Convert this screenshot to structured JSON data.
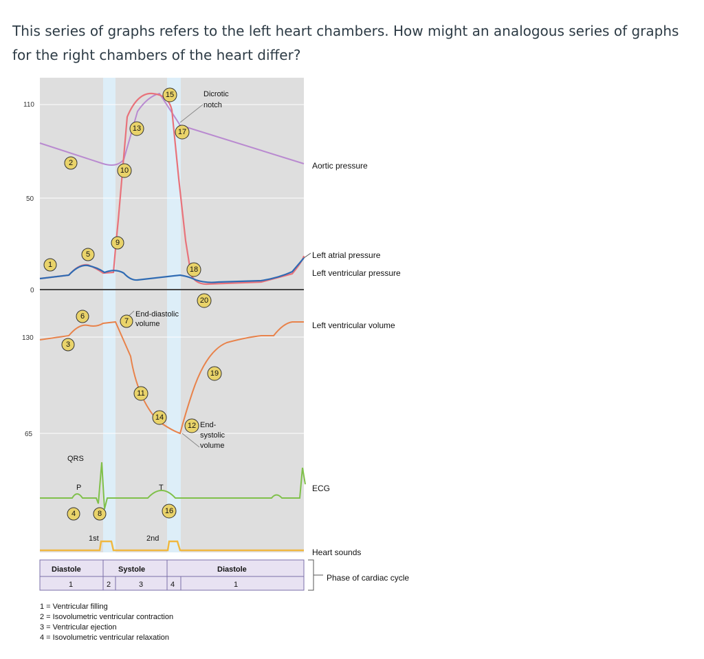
{
  "question": "This series of graphs refers to the left heart chambers. How might an analogous series of graphs for the right chambers of the heart differ?",
  "y_ticks_pressure": [
    "110",
    "50",
    "0"
  ],
  "y_ticks_volume": [
    "130",
    "65"
  ],
  "annotations": {
    "dicrotic_line1": "Dicrotic",
    "dicrotic_line2": "notch",
    "end_diastolic_line1": "End-diastolic",
    "end_diastolic_line2": "volume",
    "end_systolic_line1": "End-",
    "end_systolic_line2": "systolic",
    "end_systolic_line3": "volume",
    "qrs": "QRS",
    "p": "P",
    "t": "T",
    "first_sound": "1st",
    "second_sound": "2nd"
  },
  "right_labels": {
    "aortic": "Aortic pressure",
    "left_atrial": "Left atrial pressure",
    "left_ventricular": "Left ventricular pressure",
    "lv_volume": "Left ventricular volume",
    "ecg": "ECG",
    "heart_sounds": "Heart sounds",
    "phase": "Phase of cardiac cycle"
  },
  "phase_bar": {
    "diastole_left": "Diastole",
    "systole": "Systole",
    "diastole_right": "Diastole",
    "num1_left": "1",
    "num2": "2",
    "num3": "3",
    "num4": "4",
    "num1_right": "1"
  },
  "legend": [
    "1 = Ventricular filling",
    "2 = Isovolumetric ventricular contraction",
    "3 = Ventricular ejection",
    "4 = Isovolumetric ventricular relaxation"
  ],
  "markers": [
    "1",
    "2",
    "3",
    "4",
    "5",
    "6",
    "7",
    "8",
    "9",
    "10",
    "11",
    "12",
    "13",
    "14",
    "15",
    "16",
    "17",
    "18",
    "19",
    "20"
  ],
  "colors": {
    "panel_bg": "#dedede",
    "phase_band": "#ddeef8",
    "aortic": "#b98ad0",
    "pressure_lv": "#e8727a",
    "pressure_atrial": "#2f6bb3",
    "volume": "#e8824a",
    "ecg": "#7fc04a",
    "heart_sounds": "#f0b840",
    "marker": "#e9d36a",
    "phase_box": "#e8e2f2"
  }
}
